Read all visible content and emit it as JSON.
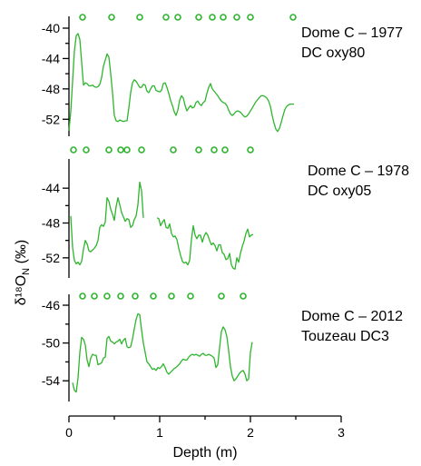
{
  "chart_data": {
    "type": "line",
    "xlabel": "Depth (m)",
    "ylabel": "δ¹⁸O",
    "ylabel_sub": "N",
    "ylabel_unit": " (‰)",
    "xlim": [
      0,
      3
    ],
    "xticks": [
      0,
      1,
      2,
      3
    ],
    "colors": {
      "series": "#2db52d",
      "axis": "#000000"
    },
    "panels": [
      {
        "label_line1": "Dome C – 1977",
        "label_line2": "DC oxy80",
        "ylim": [
          -40,
          -54
        ],
        "yticks": [
          -40,
          -44,
          -48,
          -52
        ],
        "series": [
          {
            "x": [
              0,
              0.02,
              0.04,
              0.06,
              0.08,
              0.1,
              0.12,
              0.14,
              0.16,
              0.18,
              0.2,
              0.22,
              0.24,
              0.26,
              0.28,
              0.3,
              0.32,
              0.34,
              0.36,
              0.38,
              0.4,
              0.42,
              0.44,
              0.46,
              0.48,
              0.5,
              0.52,
              0.54,
              0.56,
              0.58,
              0.6,
              0.62,
              0.64,
              0.66,
              0.68,
              0.7,
              0.72,
              0.74,
              0.76,
              0.78,
              0.8,
              0.82,
              0.84,
              0.86,
              0.88,
              0.9,
              0.92,
              0.94,
              0.96,
              0.98,
              1.0,
              1.02,
              1.04,
              1.06,
              1.08,
              1.1,
              1.12,
              1.14,
              1.16,
              1.18,
              1.2,
              1.22,
              1.24,
              1.26,
              1.28,
              1.3,
              1.32,
              1.34,
              1.36,
              1.38,
              1.4,
              1.42,
              1.44,
              1.46,
              1.48,
              1.5,
              1.52,
              1.54,
              1.56,
              1.58,
              1.6,
              1.62,
              1.64,
              1.66,
              1.68,
              1.7,
              1.72,
              1.74,
              1.76,
              1.78,
              1.8,
              1.82,
              1.84,
              1.86,
              1.88,
              1.9,
              1.92,
              1.94,
              1.96,
              1.98,
              2.0,
              2.02,
              2.04,
              2.06,
              2.08,
              2.1,
              2.12,
              2.14,
              2.16,
              2.18,
              2.2,
              2.22,
              2.24,
              2.26,
              2.28,
              2.3,
              2.32,
              2.34,
              2.36,
              2.38,
              2.4,
              2.42,
              2.44,
              2.46,
              2.48
            ],
            "y": [
              -53.5,
              -51,
              -47,
              -43,
              -41,
              -40.7,
              -41.5,
              -44.5,
              -47.5,
              -47.2,
              -47.3,
              -47.6,
              -47.6,
              -47.5,
              -47.7,
              -47.8,
              -47.7,
              -47.4,
              -46.5,
              -45,
              -44.2,
              -43.4,
              -43.8,
              -46,
              -48.5,
              -51.5,
              -52.2,
              -52.3,
              -52.1,
              -52.2,
              -52.3,
              -52.2,
              -52.2,
              -50.5,
              -48.5,
              -47.2,
              -46.8,
              -47,
              -47.4,
              -47.8,
              -47.8,
              -47.4,
              -47.5,
              -48.3,
              -48.5,
              -48,
              -47.6,
              -47.6,
              -48.2,
              -48.3,
              -48.4,
              -48.2,
              -47.3,
              -47.2,
              -47.8,
              -48.6,
              -49.5,
              -50.2,
              -51,
              -51.5,
              -50.8,
              -49.5,
              -48.9,
              -49.2,
              -50.2,
              -50.9,
              -50.5,
              -50.2,
              -50.5,
              -50.4,
              -49.8,
              -49.6,
              -50,
              -50.2,
              -49.8,
              -49.6,
              -48.6,
              -47.8,
              -47.3,
              -48,
              -48.3,
              -48.6,
              -48.9,
              -49.3,
              -49.6,
              -49.8,
              -49.9,
              -50.2,
              -50.8,
              -51.3,
              -51.5,
              -51.3,
              -51,
              -50.9,
              -51,
              -51.2,
              -51.5,
              -51.7,
              -51.6,
              -51.3,
              -50.9,
              -50.5,
              -50.1,
              -49.7,
              -49.4,
              -49.1,
              -48.9,
              -48.9,
              -49,
              -49.2,
              -49.6,
              -50.3,
              -51.5,
              -52.5,
              -53.3,
              -53.6,
              -53.2,
              -52.4,
              -51.5,
              -50.7,
              -50.3,
              -50.1,
              -50,
              -50,
              -50
            ]
          }
        ],
        "markers_x": [
          0.15,
          0.47,
          0.78,
          1.07,
          1.2,
          1.43,
          1.58,
          1.7,
          1.85,
          2.0,
          2.47
        ]
      },
      {
        "label_line1": "Dome C – 1978",
        "label_line2": "DC oxy05",
        "ylim": [
          -42,
          -54
        ],
        "yticks": [
          -44,
          -48,
          -52
        ],
        "series": [
          {
            "x": [
              0.02,
              0.04,
              0.06,
              0.08,
              0.1,
              0.12,
              0.14,
              0.16,
              0.18,
              0.2,
              0.22,
              0.24,
              0.26,
              0.28,
              0.3,
              0.32,
              0.34,
              0.36,
              0.38,
              0.4,
              0.42,
              0.44,
              0.46,
              0.48,
              0.5,
              0.52,
              0.54,
              0.56,
              0.58,
              0.6,
              0.62,
              0.64,
              0.66,
              0.68,
              0.7,
              0.72,
              0.74,
              0.76,
              0.78,
              0.8,
              0.82
            ],
            "y": [
              -47.2,
              -50.8,
              -52.3,
              -52.7,
              -52.5,
              -52.8,
              -52.4,
              -51,
              -50,
              -50.4,
              -51.2,
              -51.3,
              -51.1,
              -50.9,
              -50.6,
              -50,
              -48.5,
              -48.2,
              -48.4,
              -47.9,
              -45.1,
              -45.5,
              -46.4,
              -47,
              -47.7,
              -46.1,
              -45.1,
              -45.9,
              -46.8,
              -47.3,
              -47.8,
              -47.5,
              -47.6,
              -48.5,
              -48.3,
              -47.6,
              -47.2,
              -45.9,
              -43.3,
              -44.3,
              -47.4
            ]
          },
          {
            "x": [
              0.97,
              0.99,
              1.01,
              1.03,
              1.05,
              1.07,
              1.09,
              1.11,
              1.13,
              1.15,
              1.17,
              1.19,
              1.21,
              1.23,
              1.25,
              1.27,
              1.29,
              1.31,
              1.33,
              1.35,
              1.37,
              1.39,
              1.41,
              1.43,
              1.45,
              1.47,
              1.49,
              1.51,
              1.53,
              1.55,
              1.57,
              1.59,
              1.61,
              1.63,
              1.65,
              1.67,
              1.69,
              1.71,
              1.73,
              1.75,
              1.77,
              1.79,
              1.81,
              1.83,
              1.85,
              1.87,
              1.89,
              1.91,
              1.93,
              1.95,
              1.97,
              1.99,
              2.01,
              2.03
            ],
            "y": [
              -47.4,
              -47.5,
              -48.3,
              -47.9,
              -47.6,
              -48.5,
              -48.6,
              -48.1,
              -49.2,
              -49.6,
              -49.5,
              -49.9,
              -50.9,
              -51.7,
              -52.4,
              -52.6,
              -52.5,
              -52.8,
              -52.3,
              -49.9,
              -48.3,
              -49.4,
              -49.8,
              -49.4,
              -49.4,
              -50.2,
              -49.5,
              -49.1,
              -49.4,
              -50,
              -50.5,
              -50.3,
              -50.6,
              -51.2,
              -50.5,
              -50.5,
              -51.4,
              -51.6,
              -52.2,
              -52.1,
              -51.5,
              -52.8,
              -53.2,
              -53.3,
              -52,
              -52.5,
              -51.5,
              -50.7,
              -50.1,
              -49.2,
              -48.7,
              -49.6,
              -49.4,
              -49.3
            ]
          }
        ],
        "markers_x": [
          0.05,
          0.19,
          0.44,
          0.57,
          0.64,
          0.8,
          1.15,
          1.43,
          1.6,
          1.72,
          2.0
        ]
      },
      {
        "label_line1": "Dome C – 2012",
        "label_line2": "Touzeau DC3",
        "ylim": [
          -46,
          -56
        ],
        "yticks": [
          -46,
          -50,
          -54
        ],
        "series": [
          {
            "x": [
              0.04,
              0.06,
              0.08,
              0.1,
              0.12,
              0.14,
              0.16,
              0.18,
              0.2,
              0.22,
              0.24,
              0.26,
              0.28,
              0.3,
              0.32,
              0.34,
              0.36,
              0.38,
              0.4,
              0.42,
              0.44,
              0.46,
              0.48,
              0.5,
              0.52,
              0.54,
              0.56,
              0.58,
              0.6,
              0.62,
              0.64,
              0.66,
              0.68,
              0.7,
              0.72,
              0.74,
              0.76,
              0.78,
              0.8,
              0.82,
              0.84,
              0.86,
              0.88,
              0.9,
              0.92,
              0.94,
              0.96,
              0.98,
              1.0,
              1.02,
              1.04,
              1.06,
              1.08,
              1.1,
              1.12,
              1.14,
              1.16,
              1.18,
              1.2,
              1.22,
              1.24,
              1.26,
              1.28,
              1.3,
              1.32,
              1.34,
              1.36,
              1.38,
              1.4,
              1.42,
              1.44,
              1.46,
              1.48,
              1.5,
              1.52,
              1.54,
              1.56,
              1.58,
              1.6,
              1.62,
              1.64,
              1.66,
              1.68,
              1.7,
              1.72,
              1.74,
              1.76,
              1.78,
              1.8,
              1.82,
              1.84,
              1.86,
              1.88,
              1.9,
              1.92,
              1.94,
              1.96,
              1.98,
              2.0,
              2.02
            ],
            "y": [
              -54.2,
              -55,
              -55.2,
              -53.7,
              -51,
              -49.4,
              -49.6,
              -50.2,
              -51.8,
              -52.5,
              -51.6,
              -51.2,
              -51.3,
              -51.3,
              -52.3,
              -52.2,
              -52.1,
              -51.6,
              -51.5,
              -49.5,
              -49.3,
              -49.8,
              -49.9,
              -50.1,
              -49.9,
              -49.8,
              -49.6,
              -50.1,
              -49.7,
              -49.5,
              -50.4,
              -50.5,
              -50.4,
              -49.6,
              -48.5,
              -47.5,
              -46.9,
              -47,
              -48.6,
              -50,
              -51,
              -52,
              -52.2,
              -52.5,
              -52.8,
              -52.7,
              -52.9,
              -52.6,
              -52.7,
              -52.5,
              -52.2,
              -52.6,
              -53.1,
              -53.3,
              -53.1,
              -52.9,
              -52.7,
              -52.6,
              -52.4,
              -52.2,
              -51.9,
              -51.7,
              -51.8,
              -51.8,
              -51.5,
              -51.3,
              -51.2,
              -51.3,
              -51.2,
              -51.3,
              -51.4,
              -51.2,
              -51.1,
              -51.3,
              -51.3,
              -51.2,
              -51.3,
              -51.4,
              -51.6,
              -52.6,
              -52.3,
              -50.5,
              -48.8,
              -48.3,
              -48.6,
              -49.3,
              -50.8,
              -52.5,
              -53.5,
              -54,
              -53.8,
              -53.5,
              -53.2,
              -53,
              -52.9,
              -53.3,
              -54,
              -53.8,
              -51,
              -49.9
            ]
          }
        ],
        "markers_x": [
          0.15,
          0.28,
          0.42,
          0.57,
          0.73,
          0.93,
          1.13,
          1.34,
          1.68,
          1.92
        ]
      }
    ]
  }
}
